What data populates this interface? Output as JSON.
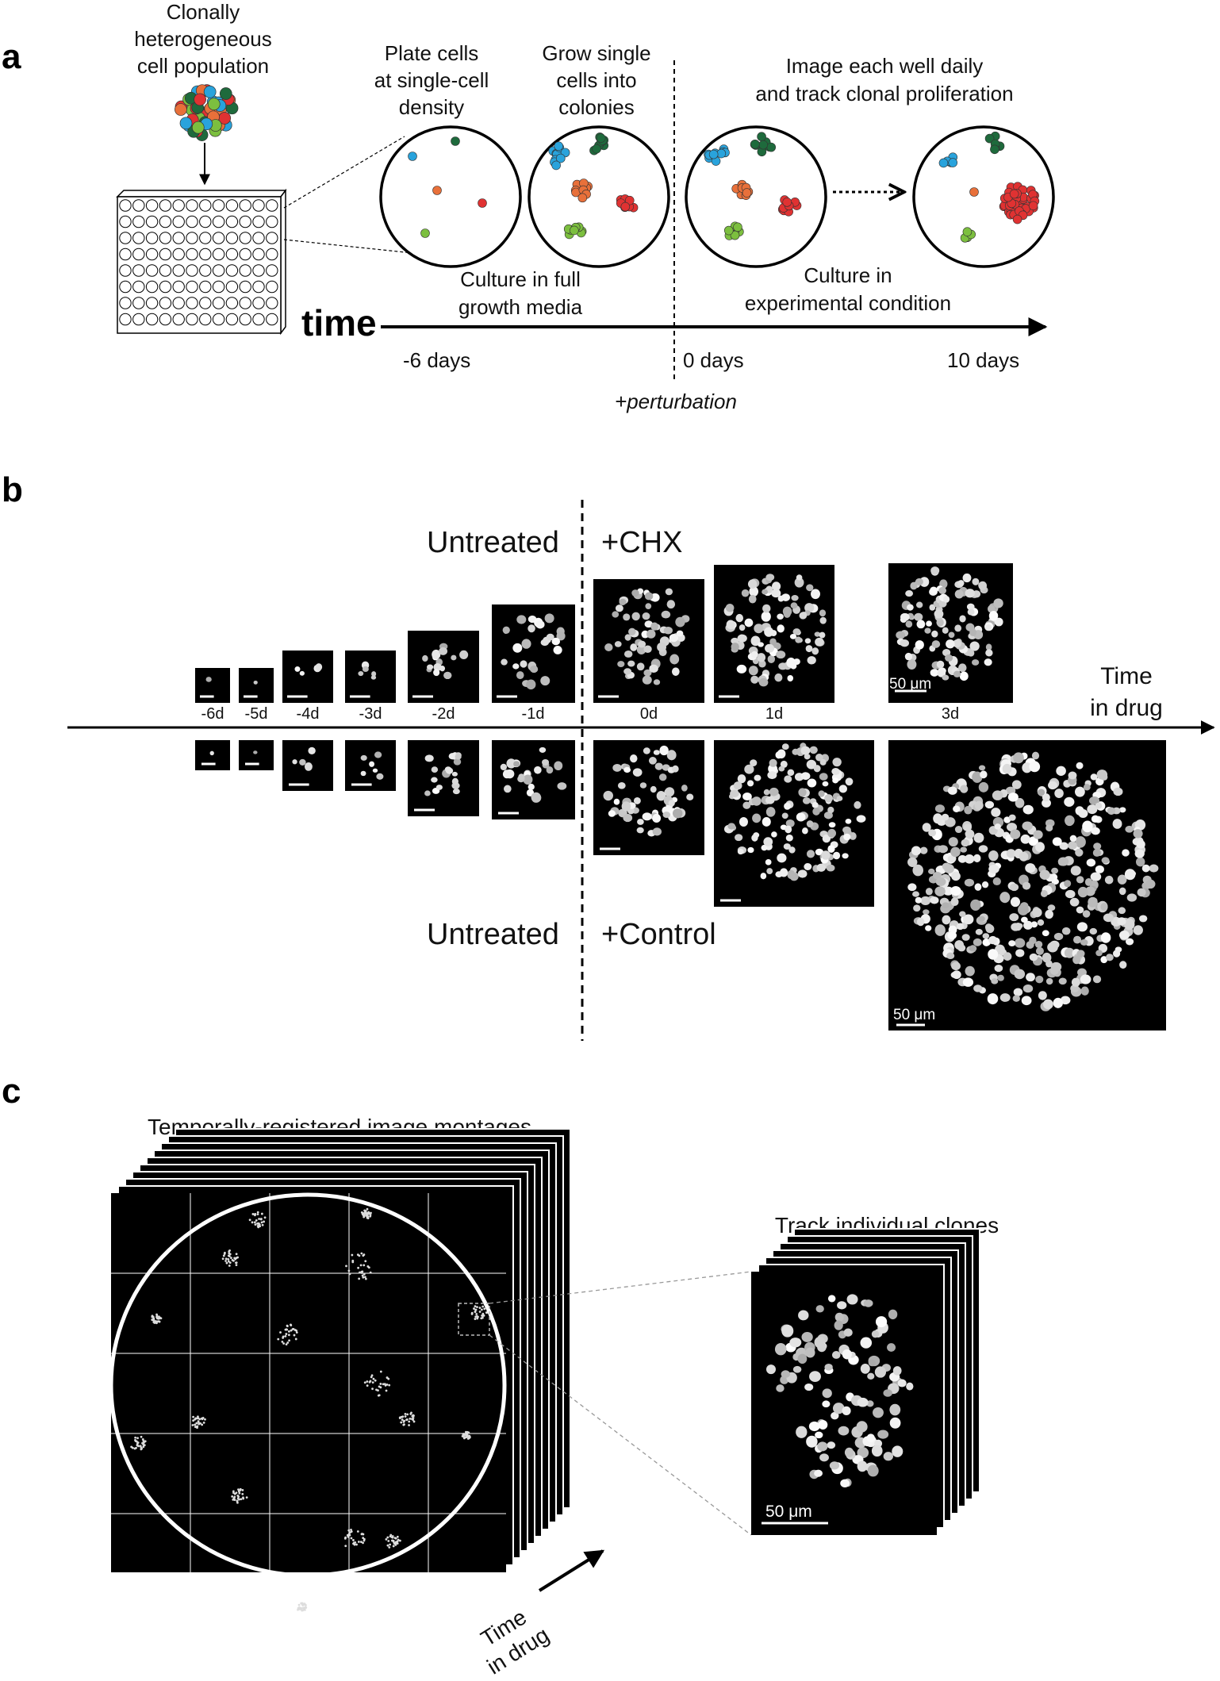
{
  "panel_a": {
    "label": "a",
    "population": [
      "Clonally",
      "heterogeneous",
      "cell population"
    ],
    "step1": [
      "Plate cells",
      "at single-cell",
      "density"
    ],
    "step2": [
      "Grow single",
      "cells into",
      "colonies"
    ],
    "step3": [
      "Image each well daily",
      "and track clonal proliferation"
    ],
    "culture_full": [
      "Culture in full",
      "growth media"
    ],
    "culture_exp": [
      "Culture in",
      "experimental condition"
    ],
    "axis_title": "time",
    "day_minus6": "-6 days",
    "day0": "0 days",
    "day10": "10 days",
    "perturbation": "+perturbation",
    "colors": {
      "blue": "#29a3dc",
      "dark_green": "#1e6a3c",
      "orange": "#e8703a",
      "red": "#e03232",
      "light_green": "#7cbf3f"
    }
  },
  "panel_b": {
    "label": "b",
    "top_left": "Untreated",
    "top_right": "+CHX",
    "bottom_left": "Untreated",
    "bottom_right": "+Control",
    "axis_title": [
      "Time",
      "in drug"
    ],
    "day_labels": [
      "-6d",
      "-5d",
      "-4d",
      "-3d",
      "-2d",
      "-1d",
      "0d",
      "1d",
      "3d"
    ],
    "scale_top": "50 μm",
    "scale_bottom": "50 μm"
  },
  "panel_c": {
    "label": "c",
    "montage_title": "Temporally-registered image montages",
    "track_title": "Track individual clones",
    "time_label": [
      "Time",
      "in drug"
    ],
    "scale": "50 μm"
  }
}
